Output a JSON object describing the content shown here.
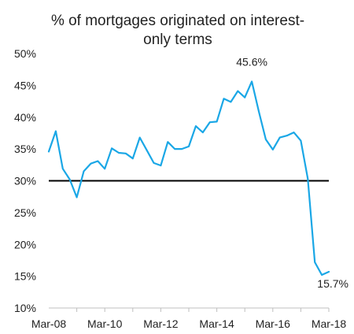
{
  "chart_data": {
    "type": "line",
    "title": "% of mortgages originated on interest-only terms",
    "title_lines": [
      "% of mortgages originated on interest-",
      "only terms"
    ],
    "xlabel": "",
    "ylabel": "",
    "ylim": [
      10,
      50
    ],
    "xlim": [
      2008.17,
      2018.17
    ],
    "y_ticks": [
      {
        "value": 10,
        "label": "10%"
      },
      {
        "value": 15,
        "label": "15%"
      },
      {
        "value": 20,
        "label": "20%"
      },
      {
        "value": 25,
        "label": "25%"
      },
      {
        "value": 30,
        "label": "30%"
      },
      {
        "value": 35,
        "label": "35%"
      },
      {
        "value": 40,
        "label": "40%"
      },
      {
        "value": 45,
        "label": "45%"
      },
      {
        "value": 50,
        "label": "50%"
      }
    ],
    "x_ticks": [
      {
        "value": 2008.17,
        "label": "Mar-08"
      },
      {
        "value": 2010.17,
        "label": "Mar-10"
      },
      {
        "value": 2012.17,
        "label": "Mar-12"
      },
      {
        "value": 2014.17,
        "label": "Mar-14"
      },
      {
        "value": 2016.17,
        "label": "Mar-16"
      },
      {
        "value": 2018.17,
        "label": "Mar-18"
      }
    ],
    "grid": false,
    "legend": "none",
    "reference_line": {
      "y": 30,
      "color": "#000000"
    },
    "series": [
      {
        "color": "#1aa7e6",
        "x": [
          2008.17,
          2008.42,
          2008.67,
          2008.92,
          2009.17,
          2009.42,
          2009.67,
          2009.92,
          2010.17,
          2010.42,
          2010.67,
          2010.92,
          2011.17,
          2011.42,
          2011.67,
          2011.92,
          2012.17,
          2012.42,
          2012.67,
          2012.92,
          2013.17,
          2013.42,
          2013.67,
          2013.92,
          2014.17,
          2014.42,
          2014.67,
          2014.92,
          2015.17,
          2015.42,
          2015.67,
          2015.92,
          2016.17,
          2016.42,
          2016.67,
          2016.92,
          2017.17,
          2017.42,
          2017.67,
          2017.92,
          2018.17
        ],
        "values": [
          34.6,
          37.8,
          31.9,
          30.2,
          27.4,
          31.5,
          32.7,
          33.1,
          31.9,
          35.1,
          34.4,
          34.3,
          33.5,
          36.8,
          34.8,
          32.8,
          32.4,
          36.1,
          35.0,
          35.0,
          35.4,
          38.6,
          37.6,
          39.2,
          39.3,
          42.9,
          42.4,
          44.1,
          43.1,
          45.6,
          40.9,
          36.5,
          34.9,
          36.8,
          37.1,
          37.6,
          36.3,
          30.3,
          17.2,
          15.2,
          15.7
        ]
      }
    ],
    "annotations": [
      {
        "x": 2015.42,
        "y": 45.6,
        "text": "45.6%"
      },
      {
        "x": 2018.17,
        "y": 15.7,
        "text": "15.7%"
      }
    ]
  }
}
